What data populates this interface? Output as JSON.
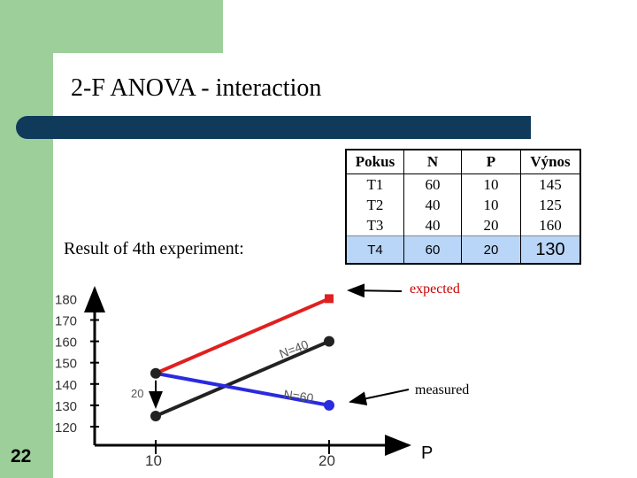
{
  "slide": {
    "title": "2-F ANOVA - interaction",
    "subtitle": "Result of 4th experiment:",
    "number": "22"
  },
  "table": {
    "headers": [
      "Pokus",
      "N",
      "P",
      "Výnos"
    ],
    "rows": [
      [
        "T1",
        "60",
        "10",
        "145"
      ],
      [
        "T2",
        "40",
        "10",
        "125"
      ],
      [
        "T3",
        "40",
        "20",
        "160"
      ]
    ],
    "highlight_row": [
      "T4",
      "60",
      "20",
      "130"
    ],
    "highlight_color": "#b9d5f7"
  },
  "chart_data": {
    "type": "line",
    "xlabel": "P",
    "x_ticks": [
      "10",
      "20"
    ],
    "y_ticks": [
      "120",
      "130",
      "140",
      "150",
      "160",
      "170",
      "180"
    ],
    "ylim": [
      115,
      185
    ],
    "side_label": "20",
    "series": [
      {
        "name": "N=40",
        "color": "#222222",
        "points": [
          {
            "x": 10,
            "y": 125
          },
          {
            "x": 20,
            "y": 160
          }
        ]
      },
      {
        "name": "N=60",
        "color": "#2a2ae0",
        "points": [
          {
            "x": 10,
            "y": 145
          },
          {
            "x": 20,
            "y": 130
          }
        ]
      },
      {
        "name": "",
        "color": "#e02020",
        "points": [
          {
            "x": 10,
            "y": 145
          },
          {
            "x": 20,
            "y": 180
          }
        ]
      }
    ],
    "annotations": {
      "expected": "expected",
      "measured": "measured"
    }
  }
}
